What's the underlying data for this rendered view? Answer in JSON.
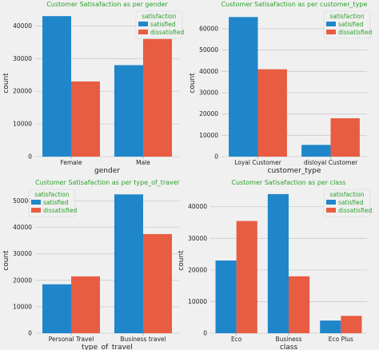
{
  "colors": {
    "satisfied": "#1f86c9",
    "dissatisfied": "#e85c42",
    "title": "#2ca02c",
    "legend_title": "#2ca02c",
    "legend_text": "#2ca02c",
    "grid": "#cbcbcb",
    "background": "#f0f0f0"
  },
  "chart_data": [
    {
      "type": "bar",
      "title": "Customer Satisafaction as per gender",
      "xlabel": "gender",
      "ylabel": "count",
      "categories": [
        "Female",
        "Male"
      ],
      "series": [
        {
          "name": "satisfied",
          "values": [
            43000,
            28000
          ]
        },
        {
          "name": "dissatisfied",
          "values": [
            23000,
            36000
          ]
        }
      ],
      "ylim": [
        0,
        45000
      ],
      "yticks": [
        0,
        10000,
        20000,
        30000,
        40000
      ],
      "grid": true,
      "legend": {
        "title": "satisfaction",
        "position": "top-right"
      }
    },
    {
      "type": "bar",
      "title": "Customer Satisafaction as per customer_type",
      "xlabel": "customer_type",
      "ylabel": "count",
      "categories": [
        "Loyal Customer",
        "disloyal Customer"
      ],
      "series": [
        {
          "name": "satisfied",
          "values": [
            65500,
            5500
          ]
        },
        {
          "name": "dissatisfied",
          "values": [
            41000,
            18000
          ]
        }
      ],
      "ylim": [
        0,
        69000
      ],
      "yticks": [
        0,
        10000,
        20000,
        30000,
        40000,
        50000,
        60000
      ],
      "grid": true,
      "legend": {
        "title": "satisfaction",
        "position": "top-right"
      }
    },
    {
      "type": "bar",
      "title": "Customer Satisafaction as per type_of_travel",
      "xlabel": "type_of_travel",
      "ylabel": "count",
      "categories": [
        "Personal Travel",
        "Business travel"
      ],
      "series": [
        {
          "name": "satisfied",
          "values": [
            18500,
            52500
          ]
        },
        {
          "name": "dissatisfied",
          "values": [
            21500,
            37500
          ]
        }
      ],
      "ylim": [
        0,
        55000
      ],
      "yticks": [
        0,
        10000,
        20000,
        30000,
        40000,
        50000
      ],
      "grid": true,
      "legend": {
        "title": "satisfaction",
        "position": "top-left"
      }
    },
    {
      "type": "bar",
      "title": "Customer Satisafaction as per class",
      "xlabel": "class",
      "ylabel": "count",
      "categories": [
        "Eco",
        "Business",
        "Eco Plus"
      ],
      "series": [
        {
          "name": "satisfied",
          "values": [
            23000,
            44000,
            4000
          ]
        },
        {
          "name": "dissatisfied",
          "values": [
            35500,
            18000,
            5500
          ]
        }
      ],
      "ylim": [
        0,
        46000
      ],
      "yticks": [
        0,
        10000,
        20000,
        30000,
        40000
      ],
      "grid": true,
      "legend": {
        "title": "satisfaction",
        "position": "top-right"
      }
    }
  ]
}
